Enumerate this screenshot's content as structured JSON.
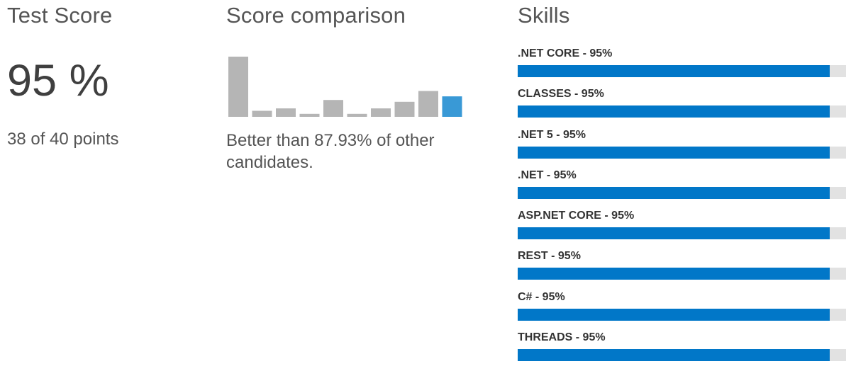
{
  "test_score": {
    "title": "Test Score",
    "value": "95 %",
    "points": "38 of 40 points"
  },
  "comparison": {
    "title": "Score comparison",
    "text": "Better than 87.93% of other candidates.",
    "colors": {
      "bar": "#b5b5b5",
      "highlight": "#3999d6"
    }
  },
  "chart_data": {
    "type": "bar",
    "categories": [
      "",
      "",
      "",
      "",
      "",
      "",
      "",
      "",
      "",
      ""
    ],
    "values": [
      100,
      10,
      14,
      5,
      28,
      5,
      14,
      25,
      43,
      34
    ],
    "highlight_index": 9
  },
  "skills": {
    "title": "Skills",
    "bar_color": "#0177c8",
    "track_color": "#e2e2e2",
    "items": [
      {
        "label": ".NET CORE - 95%",
        "percent": 95
      },
      {
        "label": "CLASSES - 95%",
        "percent": 95
      },
      {
        "label": ".NET 5 - 95%",
        "percent": 95
      },
      {
        "label": ".NET - 95%",
        "percent": 95
      },
      {
        "label": "ASP.NET CORE - 95%",
        "percent": 95
      },
      {
        "label": "REST - 95%",
        "percent": 95
      },
      {
        "label": "C# - 95%",
        "percent": 95
      },
      {
        "label": "THREADS - 95%",
        "percent": 95
      }
    ]
  }
}
